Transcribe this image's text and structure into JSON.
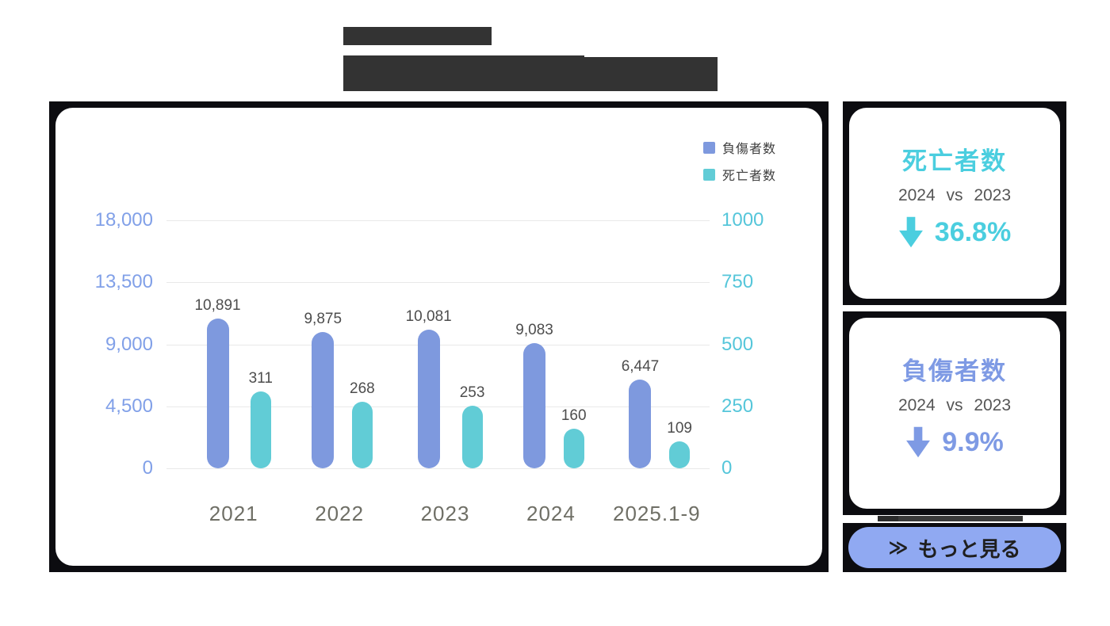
{
  "colors": {
    "bar_injured": "#7e99de",
    "bar_deaths": "#61ccd6",
    "axis_left": "#81a0e8",
    "axis_right": "#55c6da",
    "accent_deaths": "#4bcedf",
    "accent_injured": "#7e9ae4",
    "frame_black": "#0c0c10",
    "button_bg": "#90a9f2",
    "redacted_block": "#333333"
  },
  "chart_data": {
    "type": "bar",
    "categories": [
      "2021",
      "2022",
      "2023",
      "2024",
      "2025.1-9"
    ],
    "series": [
      {
        "name": "負傷者数",
        "axis": "left",
        "color": "#7e99de",
        "values": [
          10891,
          9875,
          10081,
          9083,
          6447
        ],
        "labels": [
          "10,891",
          "9,875",
          "10,081",
          "9,083",
          "6,447"
        ]
      },
      {
        "name": "死亡者数",
        "axis": "right",
        "color": "#61ccd6",
        "values": [
          311,
          268,
          253,
          160,
          109
        ],
        "labels": [
          "311",
          "268",
          "253",
          "160",
          "109"
        ]
      }
    ],
    "left_axis": {
      "ticks": [
        "18,000",
        "13,500",
        "9,000",
        "4,500",
        "0"
      ],
      "max": 18000,
      "min": 0
    },
    "right_axis": {
      "ticks": [
        "1000",
        "750",
        "500",
        "250",
        "0"
      ],
      "max": 1000,
      "min": 0
    },
    "grid": true,
    "legend_position": "top-right"
  },
  "cards": {
    "deaths": {
      "title": "死亡者数",
      "subtitle": "2024 vs 2023",
      "change": "36.8%",
      "direction": "down"
    },
    "injuries": {
      "title": "負傷者数",
      "subtitle": "2024 vs 2023",
      "change": "9.9%",
      "direction": "down"
    }
  },
  "button": {
    "icon": "≫",
    "label": "もっと見る"
  }
}
